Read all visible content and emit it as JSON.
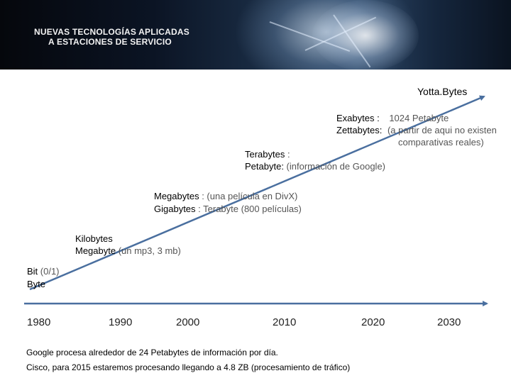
{
  "header": {
    "title_line1": "NUEVAS TECNOLOGÍAS APLICADAS",
    "title_line2": "A  ESTACIONES DE SERVICIO"
  },
  "labels": {
    "yotta": "Yotta.Bytes",
    "exa_key": "Exabytes :",
    "exa_val": "1024 Petabyte",
    "zetta_key": "Zettabytes:",
    "zetta_val": "(a partir de aqui no existen",
    "zetta_val2": "comparativas reales)",
    "tera_key": "Terabytes",
    "tera_sep": " :",
    "peta_key": "Petabyte:",
    "peta_val": " (información de Google)",
    "mega1_key": "Megabytes",
    "mega1_val": " : (una película en DivX)",
    "giga_key": "Gigabytes",
    "giga_val": " :  Terabyte (800 películas)",
    "kilo_key": "Kilobytes",
    "mega2_key": "Megabyte",
    "mega2_val": " (un mp3, 3 mb)",
    "bit_key": "Bit",
    "bit_val": " (0/1)",
    "byte_key": "Byte"
  },
  "years": [
    "1980",
    "1990",
    "2000",
    "2010",
    "2020",
    "2030"
  ],
  "footer": {
    "line1": "Google procesa alrededor de 24 Petabytes de información por día.",
    "line2": "Cisco, para 2015 estaremos procesando llegando a 4.8 ZB (procesamiento de tráfico)"
  },
  "colors": {
    "arrow": "#4a6f9f"
  }
}
